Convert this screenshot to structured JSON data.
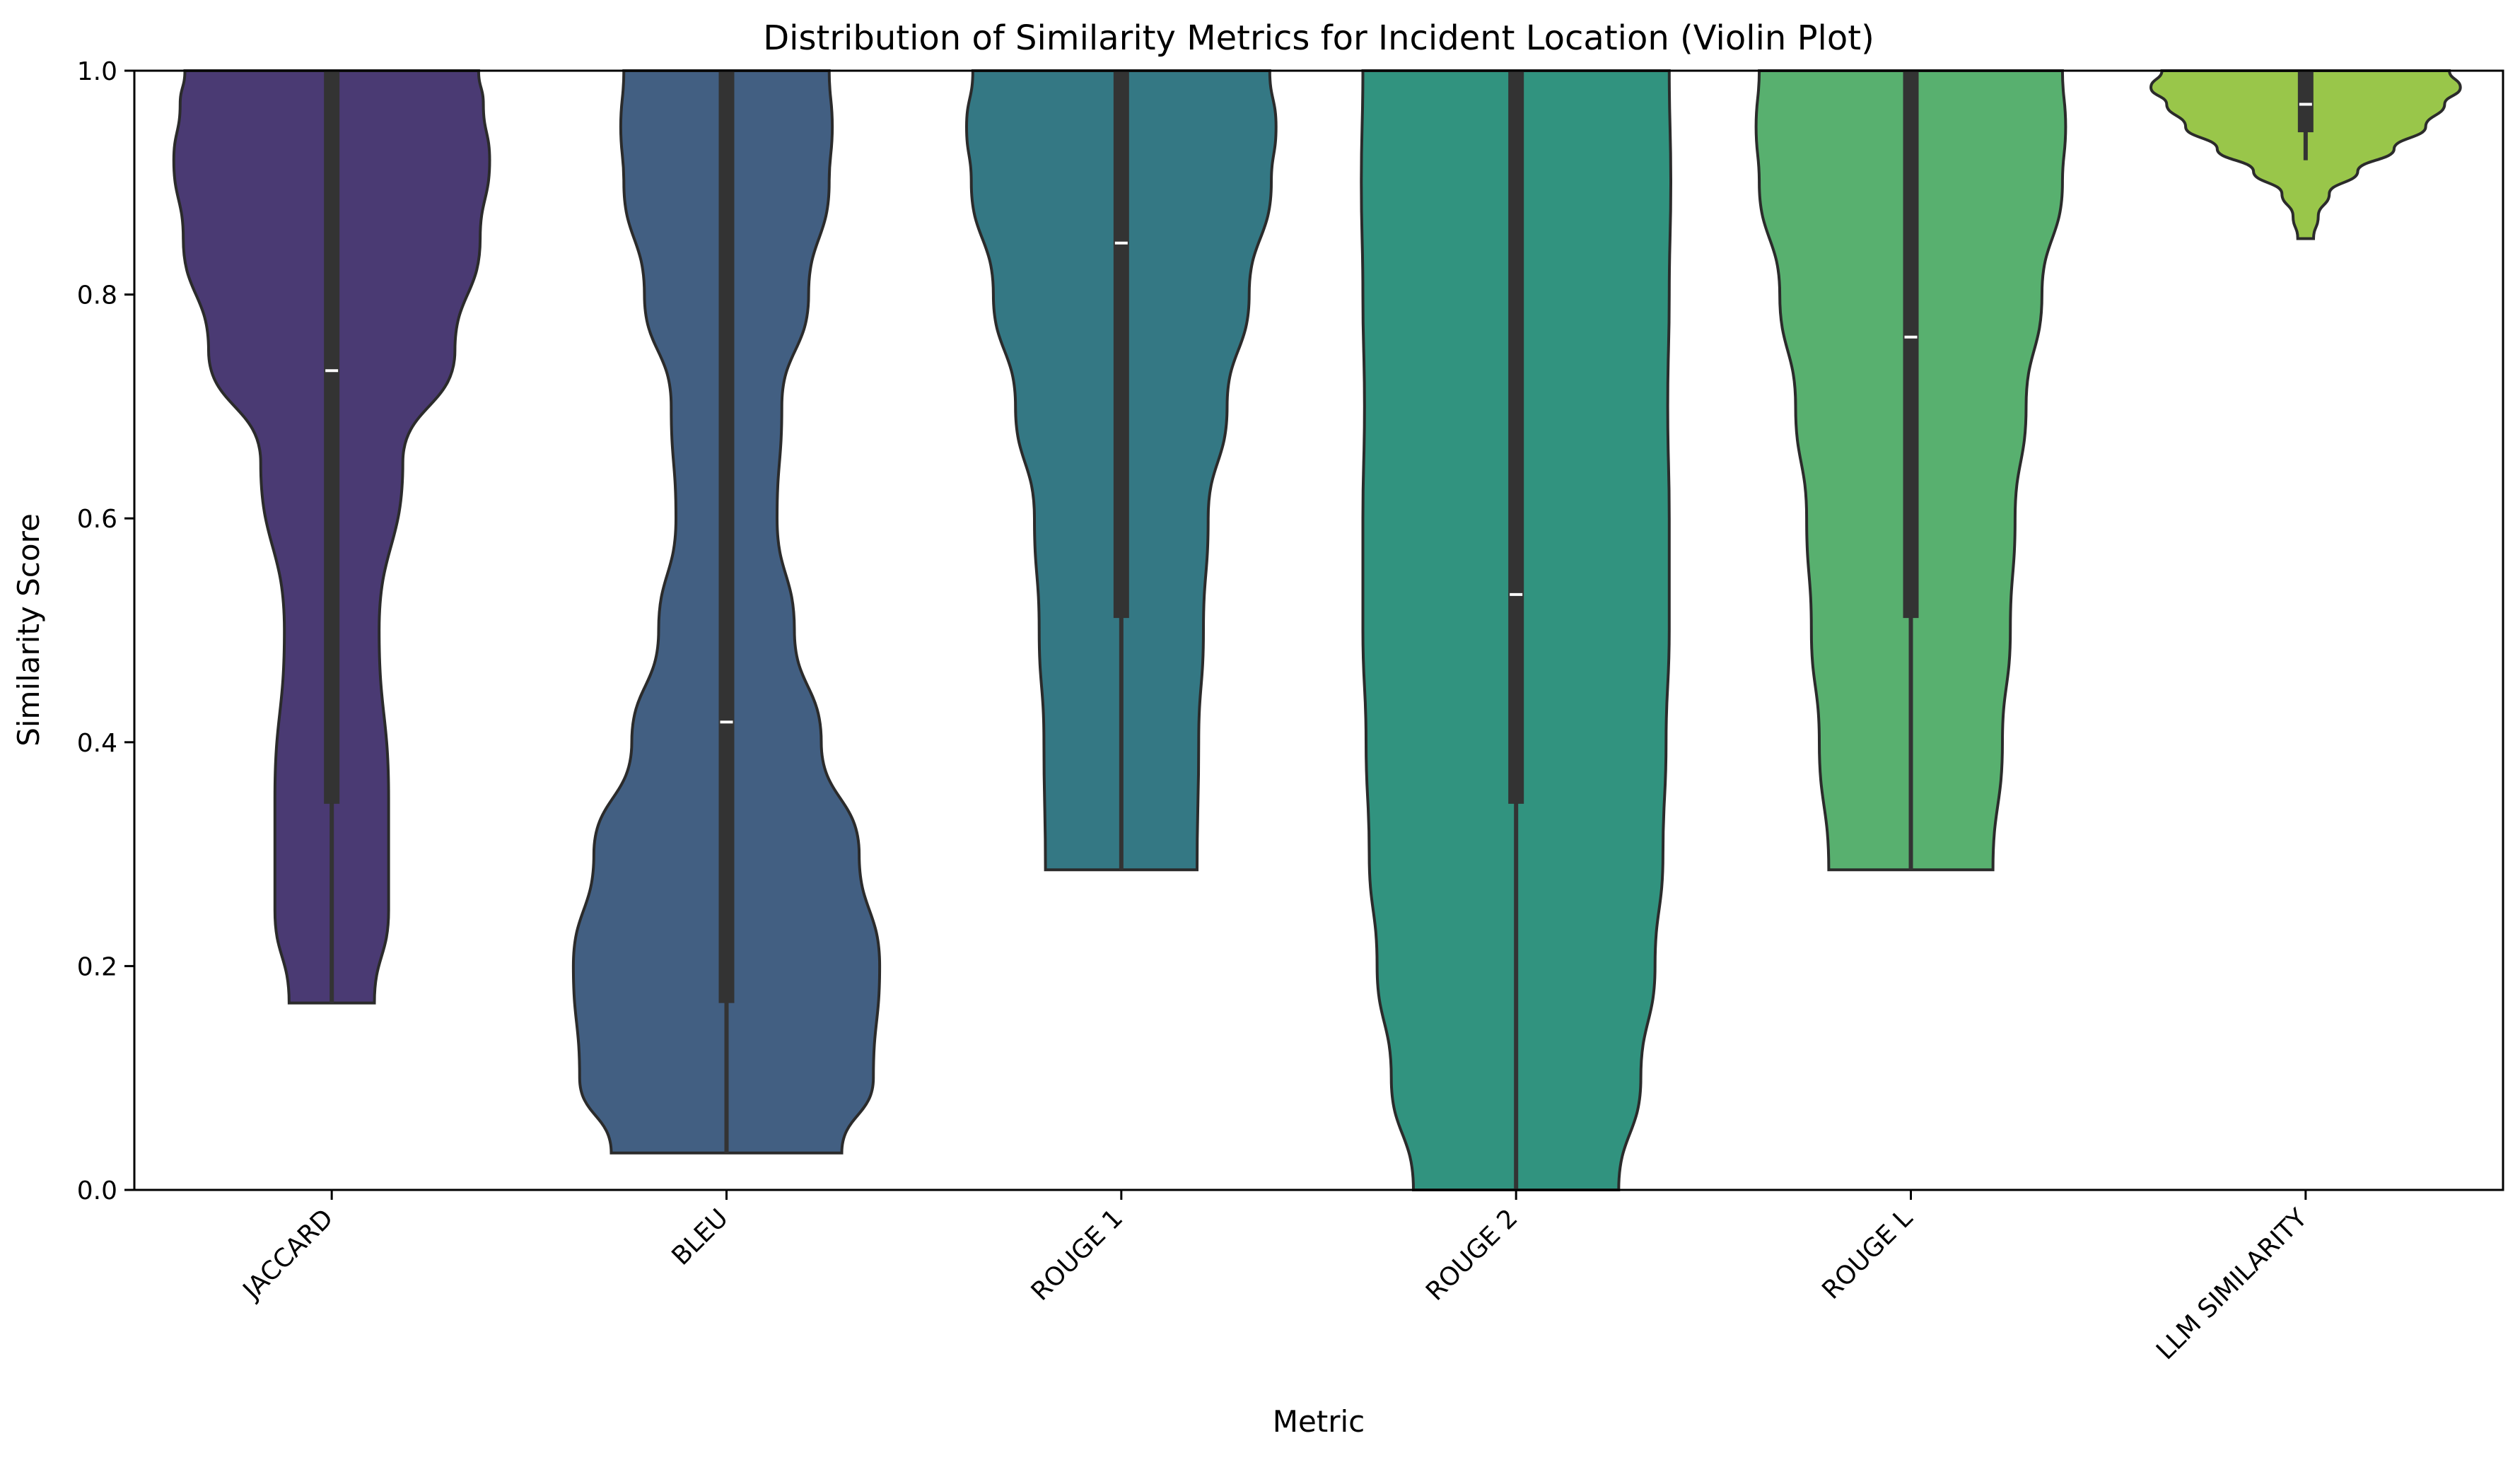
{
  "chart_data": {
    "type": "violin",
    "title": "Distribution of Similarity Metrics for Incident Location (Violin Plot)",
    "xlabel": "Metric",
    "ylabel": "Similarity Score",
    "ylim": [
      0,
      1
    ],
    "yticks": [
      0.0,
      0.2,
      0.4,
      0.6,
      0.8,
      1.0
    ],
    "ytick_labels": [
      "0.0",
      "0.2",
      "0.4",
      "0.6",
      "0.8",
      "1.0"
    ],
    "grid": false,
    "legend": "none",
    "categories": [
      "JACCARD",
      "BLEU",
      "ROUGE 1",
      "ROUGE 2",
      "ROUGE L",
      "LLM SIMILARITY"
    ],
    "series": [
      {
        "color": "#4a3a73",
        "min": 0.167,
        "q1": 0.345,
        "median": 0.732,
        "q3": 1.0,
        "max": 1.0,
        "density": [
          [
            0.167,
            0.27
          ],
          [
            0.25,
            0.36
          ],
          [
            0.35,
            0.36
          ],
          [
            0.5,
            0.3
          ],
          [
            0.65,
            0.45
          ],
          [
            0.75,
            0.78
          ],
          [
            0.85,
            0.94
          ],
          [
            0.92,
            1.0
          ],
          [
            0.97,
            0.96
          ],
          [
            1.0,
            0.93
          ]
        ]
      },
      {
        "color": "#425f82",
        "min": 0.033,
        "q1": 0.167,
        "median": 0.418,
        "q3": 1.0,
        "max": 1.0,
        "density": [
          [
            0.033,
            0.73
          ],
          [
            0.1,
            0.93
          ],
          [
            0.2,
            0.97
          ],
          [
            0.3,
            0.84
          ],
          [
            0.4,
            0.6
          ],
          [
            0.5,
            0.43
          ],
          [
            0.6,
            0.32
          ],
          [
            0.7,
            0.35
          ],
          [
            0.8,
            0.52
          ],
          [
            0.9,
            0.65
          ],
          [
            0.95,
            0.67
          ],
          [
            1.0,
            0.65
          ]
        ]
      },
      {
        "color": "#347884",
        "min": 0.286,
        "q1": 0.511,
        "median": 0.846,
        "q3": 1.0,
        "max": 1.0,
        "density": [
          [
            0.286,
            0.48
          ],
          [
            0.4,
            0.49
          ],
          [
            0.5,
            0.52
          ],
          [
            0.6,
            0.55
          ],
          [
            0.7,
            0.67
          ],
          [
            0.8,
            0.81
          ],
          [
            0.9,
            0.95
          ],
          [
            0.95,
            0.98
          ],
          [
            1.0,
            0.94
          ]
        ]
      },
      {
        "color": "#31937f",
        "min": 0.0,
        "q1": 0.345,
        "median": 0.532,
        "q3": 1.0,
        "max": 1.0,
        "density": [
          [
            0.0,
            0.65
          ],
          [
            0.1,
            0.79
          ],
          [
            0.2,
            0.88
          ],
          [
            0.3,
            0.93
          ],
          [
            0.4,
            0.95
          ],
          [
            0.5,
            0.97
          ],
          [
            0.6,
            0.97
          ],
          [
            0.7,
            0.96
          ],
          [
            0.8,
            0.97
          ],
          [
            0.9,
            0.98
          ],
          [
            1.0,
            0.97
          ]
        ]
      },
      {
        "color": "#58b06f",
        "min": 0.286,
        "q1": 0.511,
        "median": 0.762,
        "q3": 1.0,
        "max": 1.0,
        "density": [
          [
            0.286,
            0.52
          ],
          [
            0.4,
            0.58
          ],
          [
            0.5,
            0.63
          ],
          [
            0.6,
            0.66
          ],
          [
            0.7,
            0.73
          ],
          [
            0.8,
            0.83
          ],
          [
            0.9,
            0.96
          ],
          [
            0.95,
            0.98
          ],
          [
            1.0,
            0.96
          ]
        ]
      },
      {
        "color": "#99c64a",
        "min": 0.92,
        "q1": 0.945,
        "median": 0.97,
        "q3": 1.0,
        "max": 1.0,
        "density": [
          [
            0.85,
            0.05
          ],
          [
            0.87,
            0.08
          ],
          [
            0.89,
            0.15
          ],
          [
            0.91,
            0.33
          ],
          [
            0.93,
            0.56
          ],
          [
            0.95,
            0.76
          ],
          [
            0.97,
            0.88
          ],
          [
            0.985,
            0.98
          ],
          [
            1.0,
            0.91
          ]
        ]
      }
    ]
  }
}
